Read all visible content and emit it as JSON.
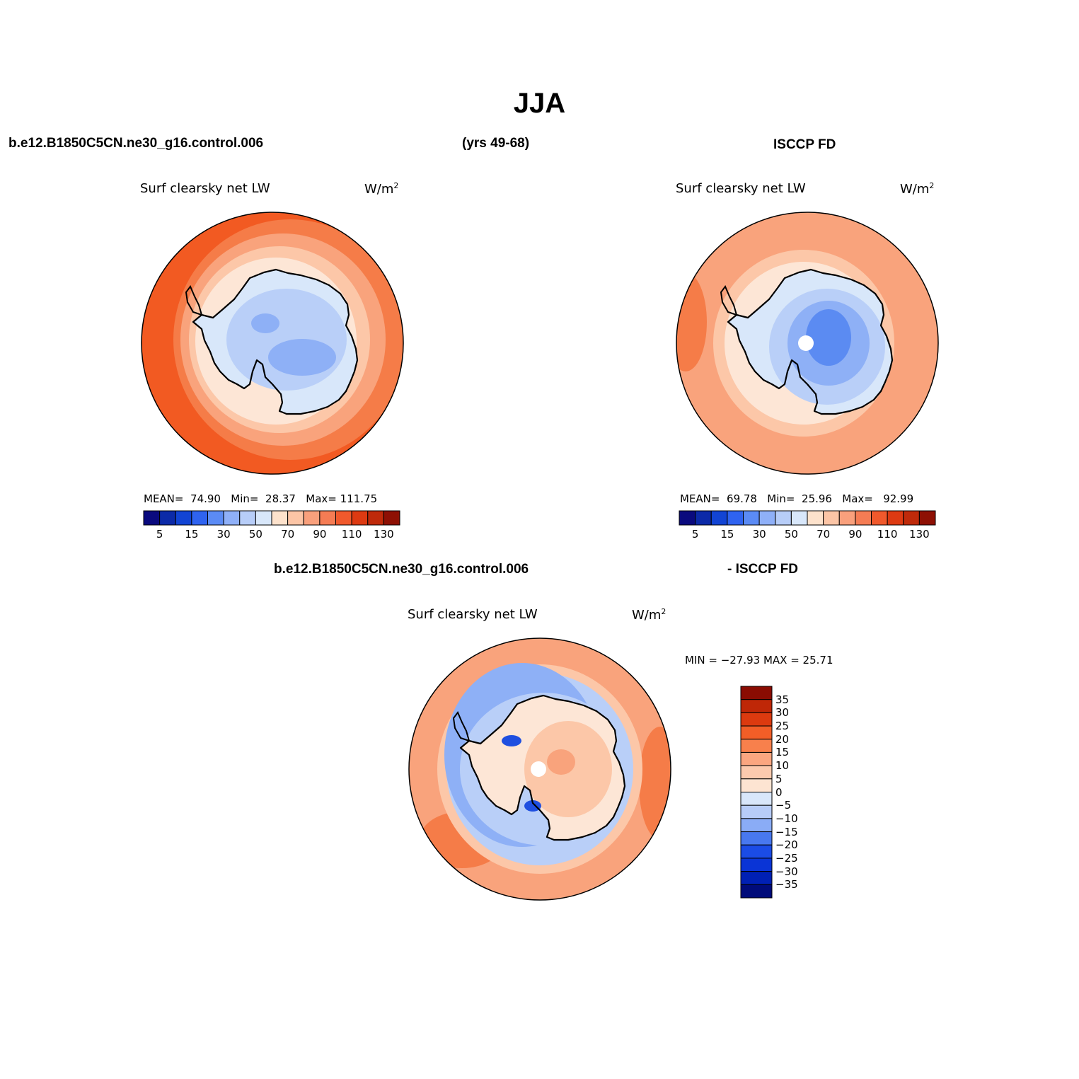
{
  "figure": {
    "title": "JJA",
    "left_case": "b.e12.B1850C5CN.ne30_g16.control.006",
    "years": "(yrs 49-68)",
    "right_case": "ISCCP FD",
    "diff_case": "b.e12.B1850C5CN.ne30_g16.control.006",
    "diff_ref": "- ISCCP FD"
  },
  "panels": {
    "model": {
      "variable": "Surf clearsky net LW",
      "units": "W/m",
      "units_exp": "2",
      "mean_label": "MEAN=",
      "mean": "74.90",
      "min_label": "Min=",
      "min": "28.37",
      "max_label": "Max=",
      "max": "111.75"
    },
    "obs": {
      "variable": "Surf clearsky net LW",
      "units": "W/m",
      "units_exp": "2",
      "mean_label": "MEAN=",
      "mean": "69.78",
      "min_label": "Min=",
      "min": "25.96",
      "max_label": "Max=",
      "max": "92.99"
    },
    "diff": {
      "variable": "Surf clearsky net LW",
      "units": "W/m",
      "units_exp": "2",
      "minmax": "MIN = −27.93  MAX =   25.71"
    }
  },
  "colorbars": {
    "main": {
      "colors": [
        "#0a0a7e",
        "#0c2aa8",
        "#1244d4",
        "#2f63f0",
        "#5b8bf5",
        "#8fb0f8",
        "#b7cdf8",
        "#d8e7fa",
        "#fde2cc",
        "#fcc5a6",
        "#f9a07c",
        "#f57c54",
        "#f0592c",
        "#dd3a12",
        "#bf2a0a",
        "#8e1004"
      ],
      "ticks": [
        "5",
        "15",
        "30",
        "50",
        "70",
        "90",
        "110",
        "130"
      ]
    },
    "diff": {
      "colors": [
        "#000b7a",
        "#0020b4",
        "#0a34d6",
        "#1b4ce6",
        "#4878ef",
        "#8aacf6",
        "#b7ccf8",
        "#d8e6fa",
        "#fde4d2",
        "#fccaae",
        "#fba680",
        "#f8804c",
        "#f25e27",
        "#dc3a0f",
        "#bf2707",
        "#8a0c02"
      ],
      "ticks": [
        "35",
        "30",
        "25",
        "20",
        "15",
        "10",
        "5",
        "0",
        "−5",
        "−10",
        "−15",
        "−20",
        "−25",
        "−30",
        "−35"
      ]
    }
  },
  "palette": {
    "dark_orange": "#f25a22",
    "orange": "#f57c48",
    "salmon": "#f9a37c",
    "peach": "#fcc7a8",
    "cream": "#fde6d6",
    "ice": "#d8e7fa",
    "pale_blue": "#b9cff8",
    "mid_blue": "#8eb0f6",
    "blue": "#5b8bf2",
    "deep_blue": "#1f4fe0",
    "pole_hole": "#ffffff"
  }
}
